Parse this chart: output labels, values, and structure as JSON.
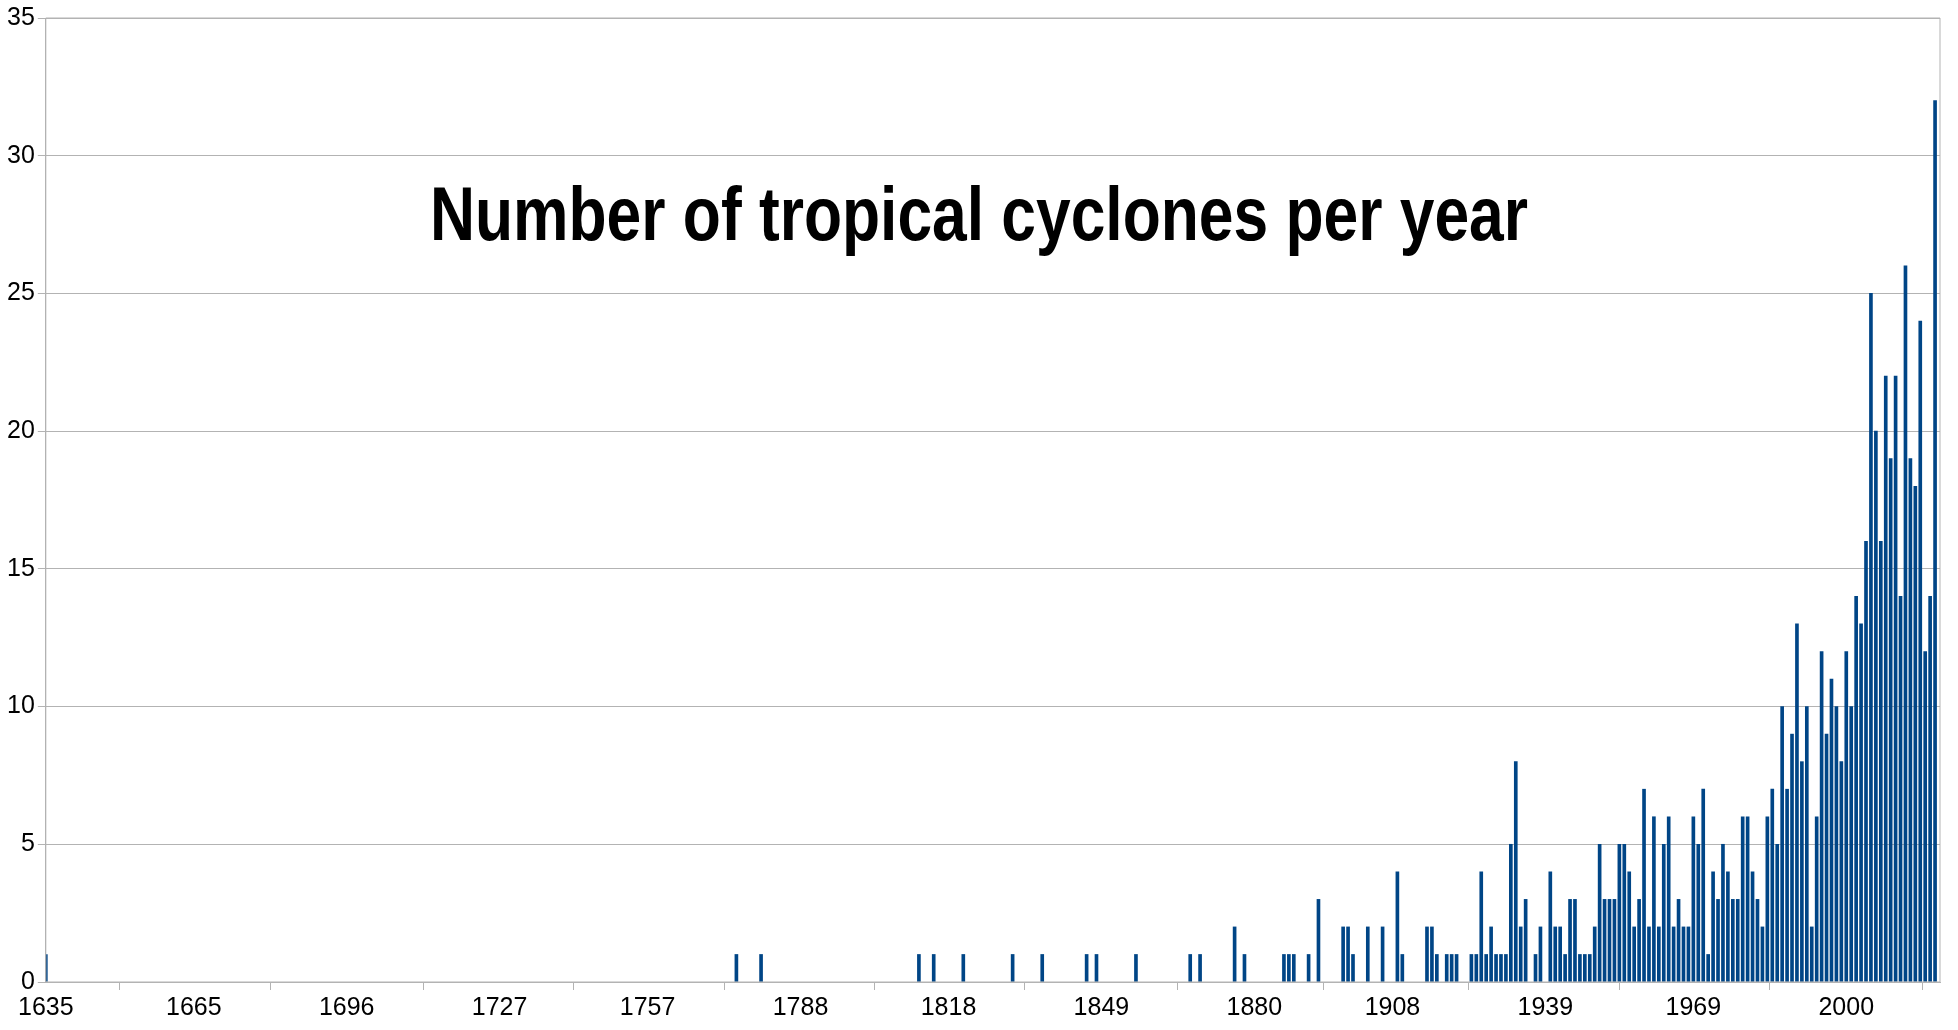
{
  "chart_data": {
    "type": "bar",
    "title": "Number of tropical cyclones per year",
    "x": [
      1635,
      1775,
      1780,
      1812,
      1815,
      1821,
      1831,
      1837,
      1846,
      1848,
      1856,
      1867,
      1869,
      1876,
      1878,
      1886,
      1887,
      1888,
      1891,
      1893,
      1898,
      1899,
      1900,
      1903,
      1906,
      1909,
      1910,
      1915,
      1916,
      1917,
      1919,
      1920,
      1921,
      1924,
      1925,
      1926,
      1927,
      1928,
      1929,
      1930,
      1931,
      1932,
      1933,
      1934,
      1935,
      1937,
      1938,
      1940,
      1941,
      1942,
      1943,
      1944,
      1945,
      1946,
      1947,
      1948,
      1949,
      1950,
      1951,
      1952,
      1953,
      1954,
      1955,
      1956,
      1957,
      1958,
      1959,
      1960,
      1961,
      1962,
      1963,
      1964,
      1965,
      1966,
      1967,
      1968,
      1969,
      1970,
      1971,
      1972,
      1973,
      1974,
      1975,
      1976,
      1977,
      1978,
      1979,
      1980,
      1981,
      1982,
      1983,
      1984,
      1985,
      1986,
      1987,
      1988,
      1989,
      1990,
      1991,
      1992,
      1993,
      1994,
      1995,
      1996,
      1997,
      1998,
      1999,
      2000,
      2001,
      2002,
      2003,
      2004,
      2005,
      2006,
      2007,
      2008,
      2009,
      2010,
      2011,
      2012,
      2013,
      2014,
      2015,
      2016,
      2017,
      2018
    ],
    "values": [
      1,
      1,
      1,
      1,
      1,
      1,
      1,
      1,
      1,
      1,
      1,
      1,
      1,
      2,
      1,
      1,
      1,
      1,
      1,
      3,
      2,
      2,
      1,
      2,
      2,
      4,
      1,
      2,
      2,
      1,
      1,
      1,
      1,
      1,
      1,
      4,
      1,
      2,
      1,
      1,
      1,
      5,
      8,
      2,
      3,
      1,
      2,
      4,
      2,
      2,
      1,
      3,
      3,
      1,
      1,
      1,
      2,
      5,
      3,
      3,
      3,
      5,
      5,
      4,
      2,
      3,
      7,
      2,
      6,
      2,
      5,
      6,
      2,
      3,
      2,
      2,
      6,
      5,
      7,
      1,
      4,
      3,
      5,
      4,
      3,
      3,
      6,
      6,
      4,
      3,
      2,
      6,
      7,
      5,
      10,
      7,
      9,
      13,
      8,
      10,
      2,
      6,
      12,
      9,
      11,
      10,
      8,
      12,
      10,
      14,
      13,
      16,
      25,
      20,
      16,
      22,
      19,
      22,
      14,
      26,
      19,
      18,
      24,
      12,
      14,
      32
    ],
    "color": "#004586",
    "xlim": [
      1635,
      2019
    ],
    "xticks": [
      1635,
      1665,
      1696,
      1727,
      1757,
      1788,
      1818,
      1849,
      1880,
      1908,
      1939,
      1969,
      2000
    ],
    "ylim": [
      0,
      35
    ],
    "yticks": [
      0,
      5,
      10,
      15,
      20,
      25,
      30,
      35
    ],
    "grid": "y",
    "legend": false
  }
}
